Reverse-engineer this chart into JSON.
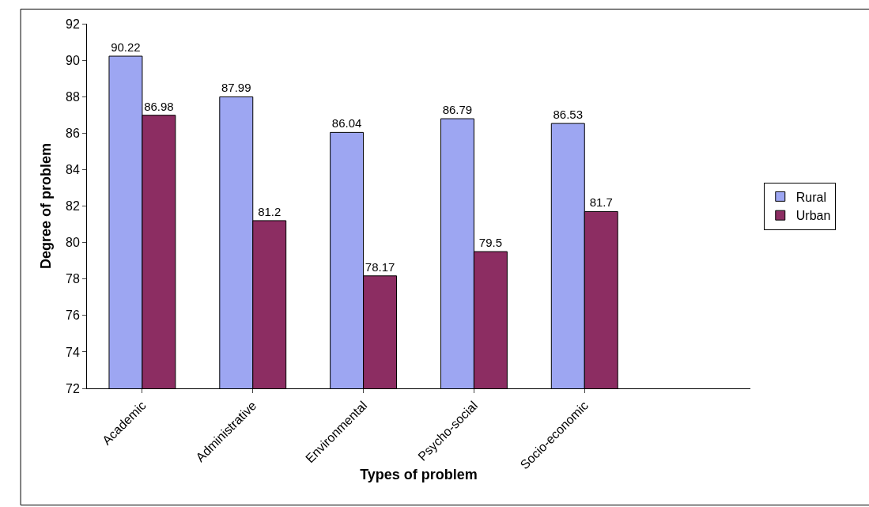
{
  "chart_data": {
    "type": "bar",
    "xlabel": "Types of problem",
    "ylabel": "Degree of problem",
    "categories": [
      "Academic",
      "Administrative",
      "Environmental",
      "Psycho-social",
      "Socio-economic",
      null
    ],
    "series": [
      {
        "name": "Rural",
        "color": "#9da6f2",
        "values": [
          90.22,
          87.99,
          86.04,
          86.79,
          86.53,
          null
        ]
      },
      {
        "name": "Urban",
        "color": "#8c2d62",
        "values": [
          86.98,
          81.2,
          78.17,
          79.5,
          81.7,
          null
        ]
      }
    ],
    "ylim": [
      72,
      92
    ],
    "yticks": [
      72,
      74,
      76,
      78,
      80,
      82,
      84,
      86,
      88,
      90,
      92
    ],
    "grid": false,
    "legend": "right",
    "data_labels": true
  }
}
